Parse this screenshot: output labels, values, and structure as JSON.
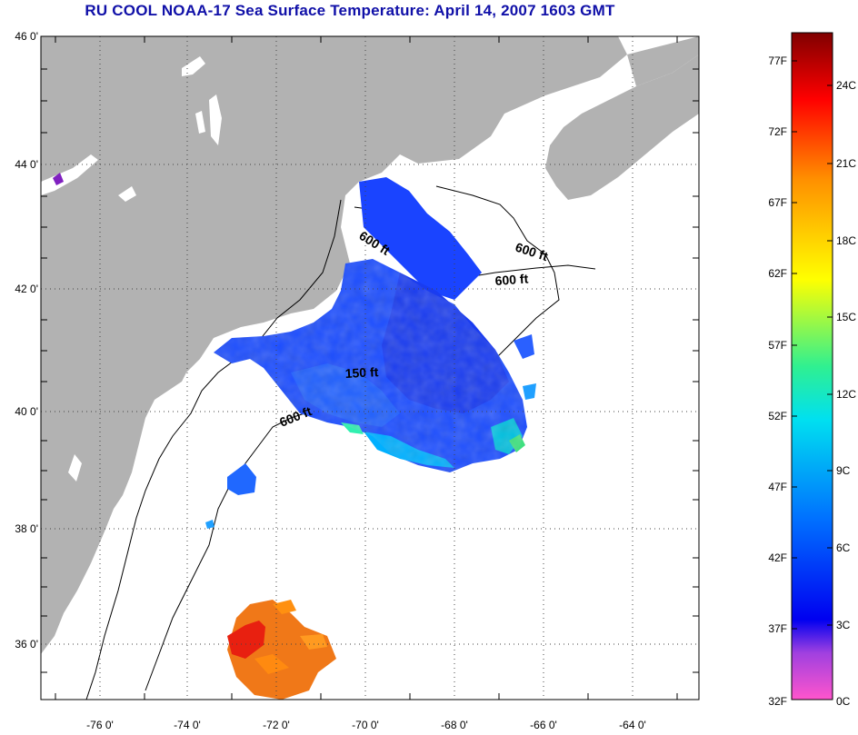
{
  "title": "RU COOL  NOAA-17  Sea Surface Temperature:  April 14, 2007 1603 GMT",
  "map": {
    "lat_labels": [
      "46 0'",
      "44 0'",
      "42 0'",
      "40 0'",
      "38 0'",
      "36 0'"
    ],
    "lon_labels": [
      "-76 0'",
      "-74 0'",
      "-72 0'",
      "-70 0'",
      "-68 0'",
      "-66 0'",
      "-64 0'"
    ],
    "isobaths": [
      "600 ft",
      "600 ft",
      "600 ft",
      "150 ft",
      "600 ft"
    ],
    "land_color": "#b2b2b2",
    "ocean_color": "#ffffff"
  },
  "colorbar": {
    "fahrenheit_labels": [
      "77F",
      "72F",
      "67F",
      "62F",
      "57F",
      "52F",
      "47F",
      "42F",
      "37F",
      "32F"
    ],
    "celsius_labels": [
      "24C",
      "21C",
      "18C",
      "15C",
      "12C",
      "9C",
      "6C",
      "3C",
      "0C"
    ],
    "gradient_stops": [
      "#ff55cc",
      "#a040e0",
      "#0000f0",
      "#0070ff",
      "#00e0f0",
      "#30f090",
      "#ffff00",
      "#ff9000",
      "#ff0000",
      "#800000"
    ]
  }
}
